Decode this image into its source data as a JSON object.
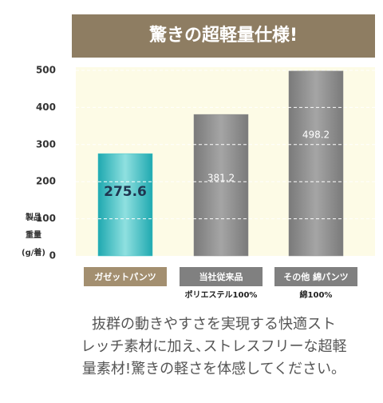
{
  "chart_data": {
    "type": "bar",
    "title": "驚きの超軽量仕様!",
    "y_label": [
      "製品",
      "重量",
      "(g/着)"
    ],
    "categories": [
      "ガゼットパンツ",
      "当社従来品",
      "その他 綿パンツ"
    ],
    "category_notes": [
      null,
      "ポリエステル100%",
      "綿100%"
    ],
    "values": [
      275.6,
      381.2,
      498.2
    ],
    "colors": [
      "#3cc0c4",
      "#8c8c8c",
      "#8c8c8c"
    ],
    "label_colors": [
      "#1f3550",
      "#ffffff",
      "#ffffff"
    ],
    "category_box_colors": [
      "#a38f70",
      "#808080",
      "#808080"
    ],
    "ylim": [
      0,
      500
    ],
    "yticks": [
      0,
      100,
      200,
      300,
      400,
      500
    ],
    "grid": true
  },
  "footer": [
    "抜群の動きやすさを実現する快適スト",
    "レッチ素材に加え､ストレスフリーな超軽",
    "量素材!驚きの軽さを体感してください。"
  ]
}
